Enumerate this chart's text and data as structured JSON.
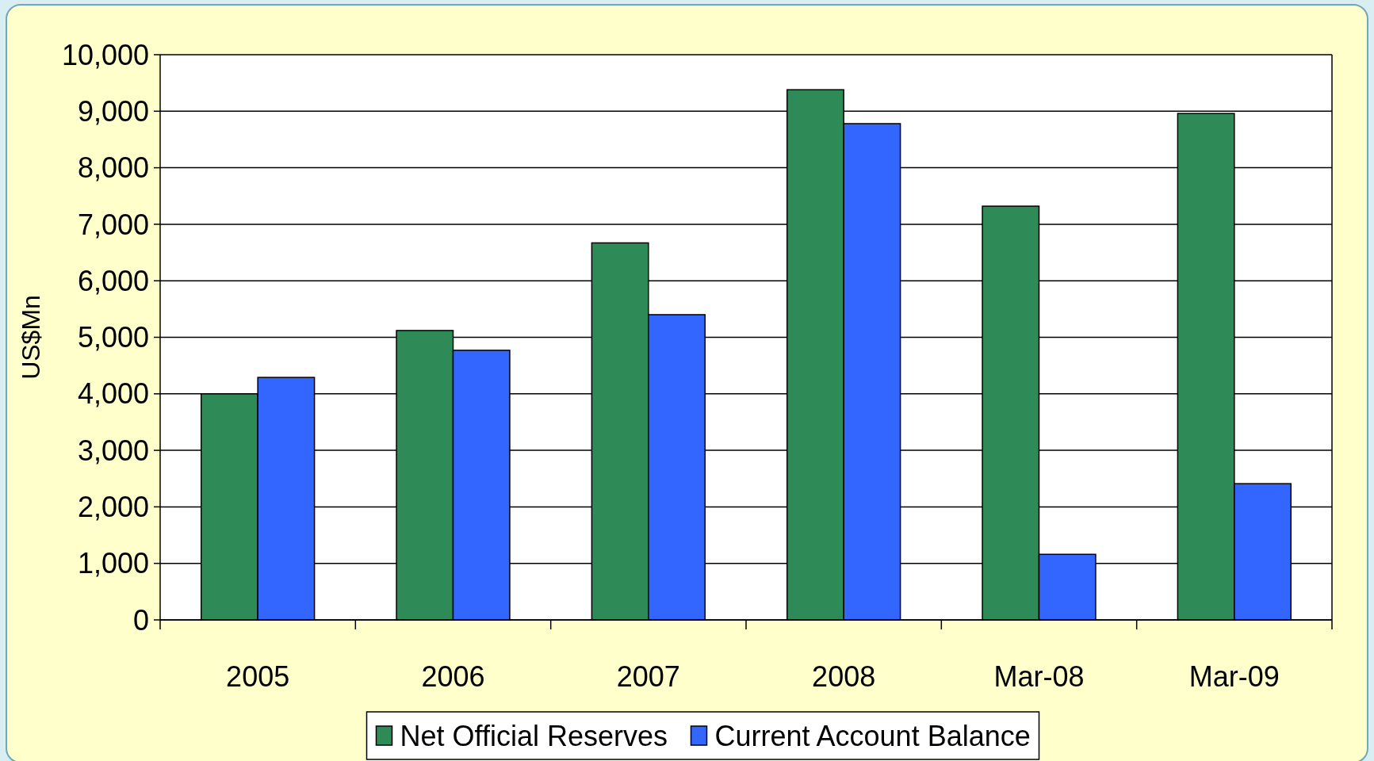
{
  "chart_data": {
    "type": "bar",
    "ylabel": "US$Mn",
    "categories": [
      "2005",
      "2006",
      "2007",
      "2008",
      "Mar-08",
      "Mar-09"
    ],
    "series": [
      {
        "name": "Net Official Reserves",
        "color": "#2e8b57",
        "values": [
          4000,
          5120,
          6670,
          9380,
          7320,
          8960
        ]
      },
      {
        "name": "Current Account Balance",
        "color": "#3366ff",
        "values": [
          4290,
          4770,
          5400,
          8780,
          1160,
          2410
        ]
      }
    ],
    "ylim": [
      0,
      10000
    ],
    "yticks": [
      {
        "value": 0,
        "label": "0"
      },
      {
        "value": 1000,
        "label": "1,000"
      },
      {
        "value": 2000,
        "label": "2,000"
      },
      {
        "value": 3000,
        "label": "3,000"
      },
      {
        "value": 4000,
        "label": "4,000"
      },
      {
        "value": 5000,
        "label": "5,000"
      },
      {
        "value": 6000,
        "label": "6,000"
      },
      {
        "value": 7000,
        "label": "7,000"
      },
      {
        "value": 8000,
        "label": "8,000"
      },
      {
        "value": 9000,
        "label": "9,000"
      },
      {
        "value": 10000,
        "label": "10,000"
      }
    ],
    "grid": "y",
    "legend": "bottom"
  }
}
